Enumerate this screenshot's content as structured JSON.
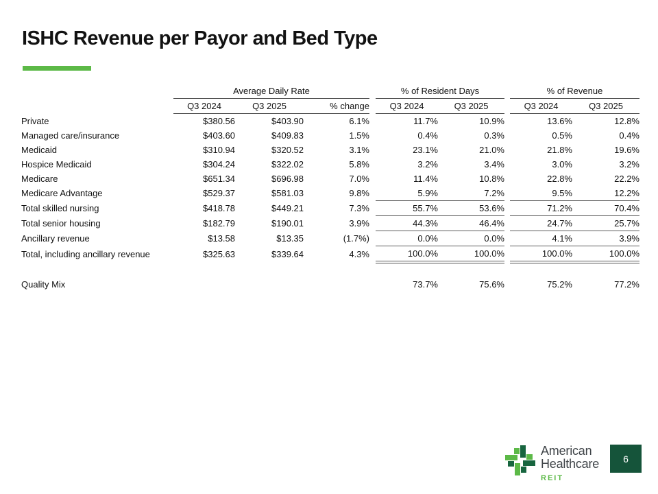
{
  "slide": {
    "title": "ISHC Revenue per Payor and Bed Type",
    "page_number": "6"
  },
  "table": {
    "group_headers": [
      {
        "label": "Average Daily Rate"
      },
      {
        "label": "% of Resident Days"
      },
      {
        "label": "% of Revenue"
      }
    ],
    "column_headers": [
      "Q3 2024",
      "Q3 2025",
      "% change",
      "Q3 2024",
      "Q3 2025",
      "Q3 2024",
      "Q3 2025"
    ],
    "rows": [
      {
        "label": "Private",
        "bold": false,
        "rule_top": false,
        "double_bottom": false,
        "values": [
          "$380.56",
          "$403.90",
          "6.1%",
          "11.7%",
          "10.9%",
          "13.6%",
          "12.8%"
        ]
      },
      {
        "label": "Managed care/insurance",
        "bold": false,
        "rule_top": false,
        "double_bottom": false,
        "values": [
          "$403.60",
          "$409.83",
          "1.5%",
          "0.4%",
          "0.3%",
          "0.5%",
          "0.4%"
        ]
      },
      {
        "label": "Medicaid",
        "bold": false,
        "rule_top": false,
        "double_bottom": false,
        "values": [
          "$310.94",
          "$320.52",
          "3.1%",
          "23.1%",
          "21.0%",
          "21.8%",
          "19.6%"
        ]
      },
      {
        "label": "Hospice Medicaid",
        "bold": false,
        "rule_top": false,
        "double_bottom": false,
        "values": [
          "$304.24",
          "$322.02",
          "5.8%",
          "3.2%",
          "3.4%",
          "3.0%",
          "3.2%"
        ]
      },
      {
        "label": "Medicare",
        "bold": false,
        "rule_top": false,
        "double_bottom": false,
        "values": [
          "$651.34",
          "$696.98",
          "7.0%",
          "11.4%",
          "10.8%",
          "22.8%",
          "22.2%"
        ]
      },
      {
        "label": "Medicare Advantage",
        "bold": false,
        "rule_top": false,
        "double_bottom": false,
        "values": [
          "$529.37",
          "$581.03",
          "9.8%",
          "5.9%",
          "7.2%",
          "9.5%",
          "12.2%"
        ]
      },
      {
        "label": "Total skilled nursing",
        "bold": true,
        "rule_top": true,
        "double_bottom": false,
        "values": [
          "$418.78",
          "$449.21",
          "7.3%",
          "55.7%",
          "53.6%",
          "71.2%",
          "70.4%"
        ]
      },
      {
        "label": "Total senior housing",
        "bold": true,
        "rule_top": true,
        "double_bottom": false,
        "values": [
          "$182.79",
          "$190.01",
          "3.9%",
          "44.3%",
          "46.4%",
          "24.7%",
          "25.7%"
        ]
      },
      {
        "label": "Ancillary revenue",
        "bold": false,
        "rule_top": true,
        "double_bottom": false,
        "values": [
          "$13.58",
          "$13.35",
          "(1.7%)",
          "0.0%",
          "0.0%",
          "4.1%",
          "3.9%"
        ]
      },
      {
        "label": "Total, including ancillary revenue",
        "bold": true,
        "rule_top": true,
        "double_bottom": true,
        "values": [
          "$325.63",
          "$339.64",
          "4.3%",
          "100.0%",
          "100.0%",
          "100.0%",
          "100.0%"
        ]
      }
    ],
    "quality_mix": {
      "label": "Quality Mix",
      "bold": false,
      "values_bold": true,
      "rule_top": false,
      "double_bottom": false,
      "values": [
        "",
        "",
        "",
        "73.7%",
        "75.6%",
        "75.2%",
        "77.2%"
      ]
    }
  },
  "footer": {
    "brand_line1": "American",
    "brand_line2": "Healthcare",
    "brand_line3": "REIT"
  },
  "colors": {
    "accent_green": "#5CB947",
    "cross_light_green": "#5CB947",
    "cross_dark_green": "#17653F",
    "page_box_green": "#15543A",
    "rule_gray": "#595959"
  }
}
